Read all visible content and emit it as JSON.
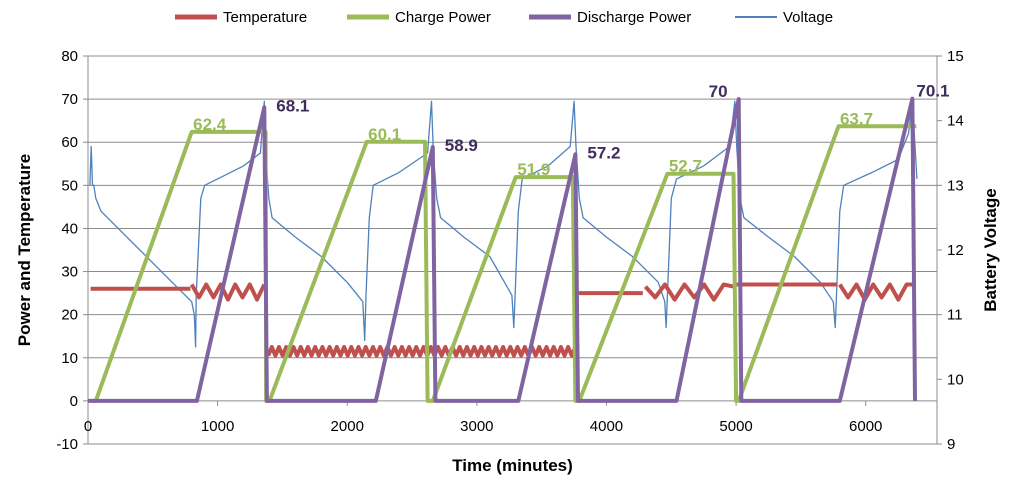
{
  "chart_data": {
    "type": "line",
    "xlabel": "Time (minutes)",
    "ylabel": "Power and Temperature",
    "y2label": "Battery Voltage",
    "xlim": [
      0,
      6550
    ],
    "ylim": [
      -10,
      80
    ],
    "y2lim": [
      9,
      15
    ],
    "x_ticks": [
      0,
      1000,
      2000,
      3000,
      4000,
      5000,
      6000
    ],
    "y_ticks": [
      -10,
      0,
      10,
      20,
      30,
      40,
      50,
      60,
      70,
      80
    ],
    "y2_ticks": [
      9,
      10,
      11,
      12,
      13,
      14,
      15
    ],
    "legend_position": "top",
    "series": [
      {
        "name": "Temperature",
        "color": "#c0504d",
        "axis": "left",
        "segments": [
          {
            "x_start": 20,
            "x_end": 790,
            "base": 26
          },
          {
            "x_start": 800,
            "x_end": 1360,
            "base": 27,
            "dips": [
              24,
              27,
              24,
              27,
              23.5,
              27,
              24,
              27,
              23.5
            ]
          },
          {
            "x_start": 1390,
            "x_end": 3760,
            "base": 12,
            "osc": [
              9,
              13
            ]
          },
          {
            "x_start": 3770,
            "x_end": 4280,
            "base": 25
          },
          {
            "x_start": 4300,
            "x_end": 4980,
            "base": 26.5,
            "dips": [
              24,
              27,
              23.5,
              27,
              24,
              27,
              23.5,
              27
            ]
          },
          {
            "x_start": 5000,
            "x_end": 5780,
            "base": 27
          },
          {
            "x_start": 5800,
            "x_end": 6380,
            "base": 27,
            "dips": [
              24,
              27,
              23.5,
              27,
              24,
              27,
              23.5,
              27
            ]
          }
        ]
      },
      {
        "name": "Charge Power",
        "color": "#9bbb59",
        "axis": "left",
        "points": [
          [
            30,
            0
          ],
          [
            60,
            0
          ],
          [
            800,
            62.4
          ],
          [
            1370,
            62.4
          ],
          [
            1375,
            0
          ],
          [
            1400,
            0
          ],
          [
            2150,
            60.1
          ],
          [
            2600,
            60.1
          ],
          [
            2620,
            0
          ],
          [
            2660,
            0
          ],
          [
            3300,
            51.9
          ],
          [
            3740,
            51.9
          ],
          [
            3760,
            0
          ],
          [
            3790,
            0
          ],
          [
            4470,
            52.7
          ],
          [
            4980,
            52.7
          ],
          [
            5000,
            0
          ],
          [
            5020,
            0
          ],
          [
            5790,
            63.7
          ],
          [
            6390,
            63.7
          ]
        ]
      },
      {
        "name": "Discharge Power",
        "color": "#8064a2",
        "axis": "left",
        "points": [
          [
            0,
            0
          ],
          [
            840,
            0
          ],
          [
            1360,
            68.1
          ],
          [
            1380,
            0
          ],
          [
            2220,
            0
          ],
          [
            2660,
            58.9
          ],
          [
            2680,
            0
          ],
          [
            3320,
            0
          ],
          [
            3760,
            57.2
          ],
          [
            3780,
            0
          ],
          [
            4540,
            0
          ],
          [
            5020,
            70
          ],
          [
            5040,
            0
          ],
          [
            5800,
            0
          ],
          [
            6360,
            70.1
          ],
          [
            6380,
            0
          ]
        ]
      },
      {
        "name": "Voltage",
        "color": "#4f81bd",
        "axis": "right",
        "points": [
          [
            15,
            13.0
          ],
          [
            25,
            13.6
          ],
          [
            35,
            13.0
          ],
          [
            45,
            13.0
          ],
          [
            60,
            12.8
          ],
          [
            100,
            12.6
          ],
          [
            300,
            12.2
          ],
          [
            500,
            11.8
          ],
          [
            700,
            11.4
          ],
          [
            800,
            11.2
          ],
          [
            820,
            11.0
          ],
          [
            830,
            10.5
          ],
          [
            835,
            11.3
          ],
          [
            870,
            12.8
          ],
          [
            900,
            13.0
          ],
          [
            1000,
            13.1
          ],
          [
            1200,
            13.3
          ],
          [
            1330,
            13.5
          ],
          [
            1360,
            14.3
          ],
          [
            1370,
            13.5
          ],
          [
            1395,
            12.8
          ],
          [
            1420,
            12.5
          ],
          [
            1600,
            12.2
          ],
          [
            1800,
            11.9
          ],
          [
            2000,
            11.5
          ],
          [
            2120,
            11.2
          ],
          [
            2135,
            10.6
          ],
          [
            2145,
            11.3
          ],
          [
            2170,
            12.5
          ],
          [
            2200,
            13.0
          ],
          [
            2400,
            13.2
          ],
          [
            2620,
            13.5
          ],
          [
            2650,
            14.3
          ],
          [
            2665,
            13.5
          ],
          [
            2690,
            12.8
          ],
          [
            2720,
            12.5
          ],
          [
            2900,
            12.2
          ],
          [
            3100,
            11.9
          ],
          [
            3270,
            11.3
          ],
          [
            3285,
            10.8
          ],
          [
            3295,
            11.3
          ],
          [
            3320,
            12.6
          ],
          [
            3350,
            13.1
          ],
          [
            3550,
            13.3
          ],
          [
            3720,
            13.6
          ],
          [
            3750,
            14.3
          ],
          [
            3765,
            13.6
          ],
          [
            3790,
            12.8
          ],
          [
            3820,
            12.5
          ],
          [
            4000,
            12.2
          ],
          [
            4200,
            11.9
          ],
          [
            4400,
            11.5
          ],
          [
            4450,
            11.2
          ],
          [
            4460,
            10.8
          ],
          [
            4470,
            11.3
          ],
          [
            4500,
            12.8
          ],
          [
            4540,
            13.1
          ],
          [
            4750,
            13.3
          ],
          [
            4950,
            13.6
          ],
          [
            4990,
            14.3
          ],
          [
            5005,
            13.6
          ],
          [
            5030,
            12.8
          ],
          [
            5060,
            12.5
          ],
          [
            5250,
            12.2
          ],
          [
            5450,
            11.9
          ],
          [
            5650,
            11.5
          ],
          [
            5750,
            11.2
          ],
          [
            5765,
            10.8
          ],
          [
            5775,
            11.3
          ],
          [
            5800,
            12.6
          ],
          [
            5830,
            13.0
          ],
          [
            6050,
            13.2
          ],
          [
            6250,
            13.4
          ],
          [
            6330,
            13.8
          ],
          [
            6360,
            14.3
          ],
          [
            6375,
            13.8
          ],
          [
            6395,
            13.1
          ]
        ]
      }
    ],
    "annotations": [
      {
        "text": "62.4",
        "series": "Charge Power",
        "x": 800,
        "y": 62.4
      },
      {
        "text": "68.1",
        "series": "Discharge Power",
        "x": 1360,
        "y": 68.1
      },
      {
        "text": "60.1",
        "series": "Charge Power",
        "x": 2150,
        "y": 60.1
      },
      {
        "text": "58.9",
        "series": "Discharge Power",
        "x": 2660,
        "y": 58.9
      },
      {
        "text": "51.9",
        "series": "Charge Power",
        "x": 3300,
        "y": 51.9
      },
      {
        "text": "57.2",
        "series": "Discharge Power",
        "x": 3760,
        "y": 57.2
      },
      {
        "text": "52.7",
        "series": "Charge Power",
        "x": 4470,
        "y": 52.7
      },
      {
        "text": "70",
        "series": "Discharge Power",
        "x": 5020,
        "y": 70
      },
      {
        "text": "63.7",
        "series": "Charge Power",
        "x": 5790,
        "y": 63.7
      },
      {
        "text": "70.1",
        "series": "Discharge Power",
        "x": 6360,
        "y": 70.1
      }
    ]
  }
}
